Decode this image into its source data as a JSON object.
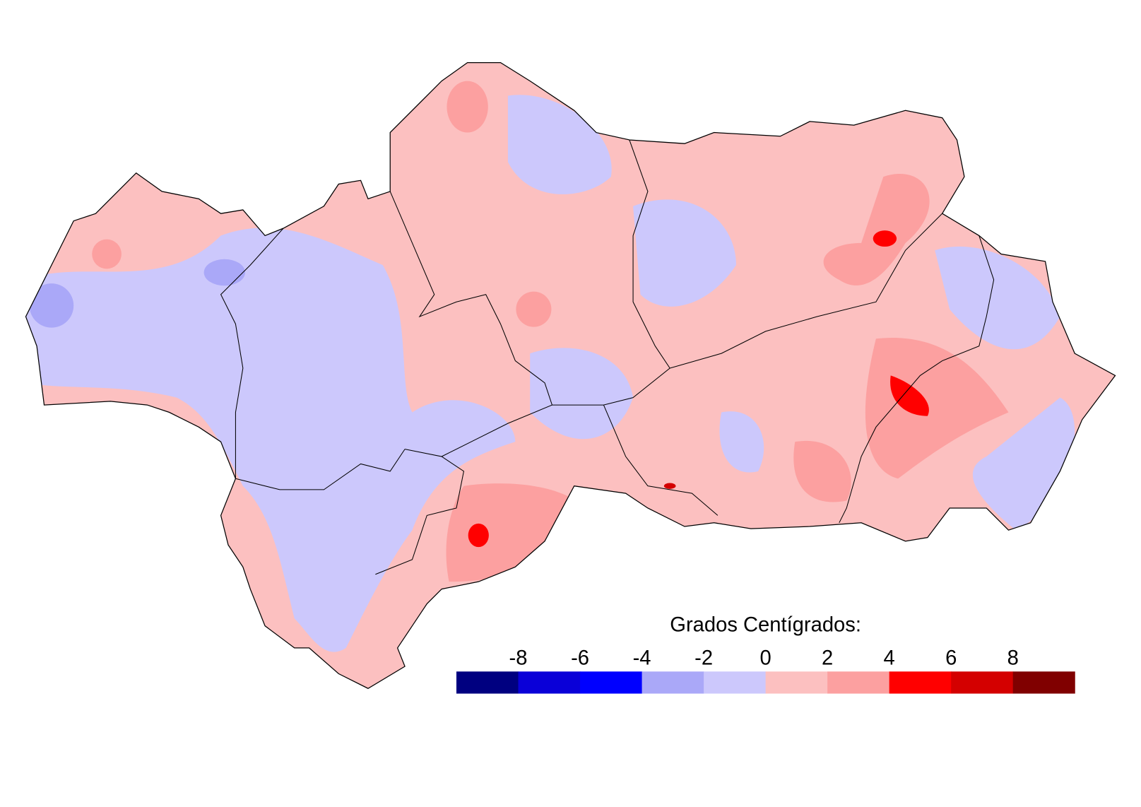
{
  "legend": {
    "title": "Grados Centígrados:",
    "ticks": [
      -8,
      -6,
      -4,
      -2,
      0,
      2,
      4,
      6,
      8
    ],
    "colors": [
      "#000080",
      "#0a00d8",
      "#0000ff",
      "#aaa8f8",
      "#ccc8fc",
      "#fcc0c0",
      "#fca0a0",
      "#ff0000",
      "#d40000",
      "#800000"
    ]
  }
}
